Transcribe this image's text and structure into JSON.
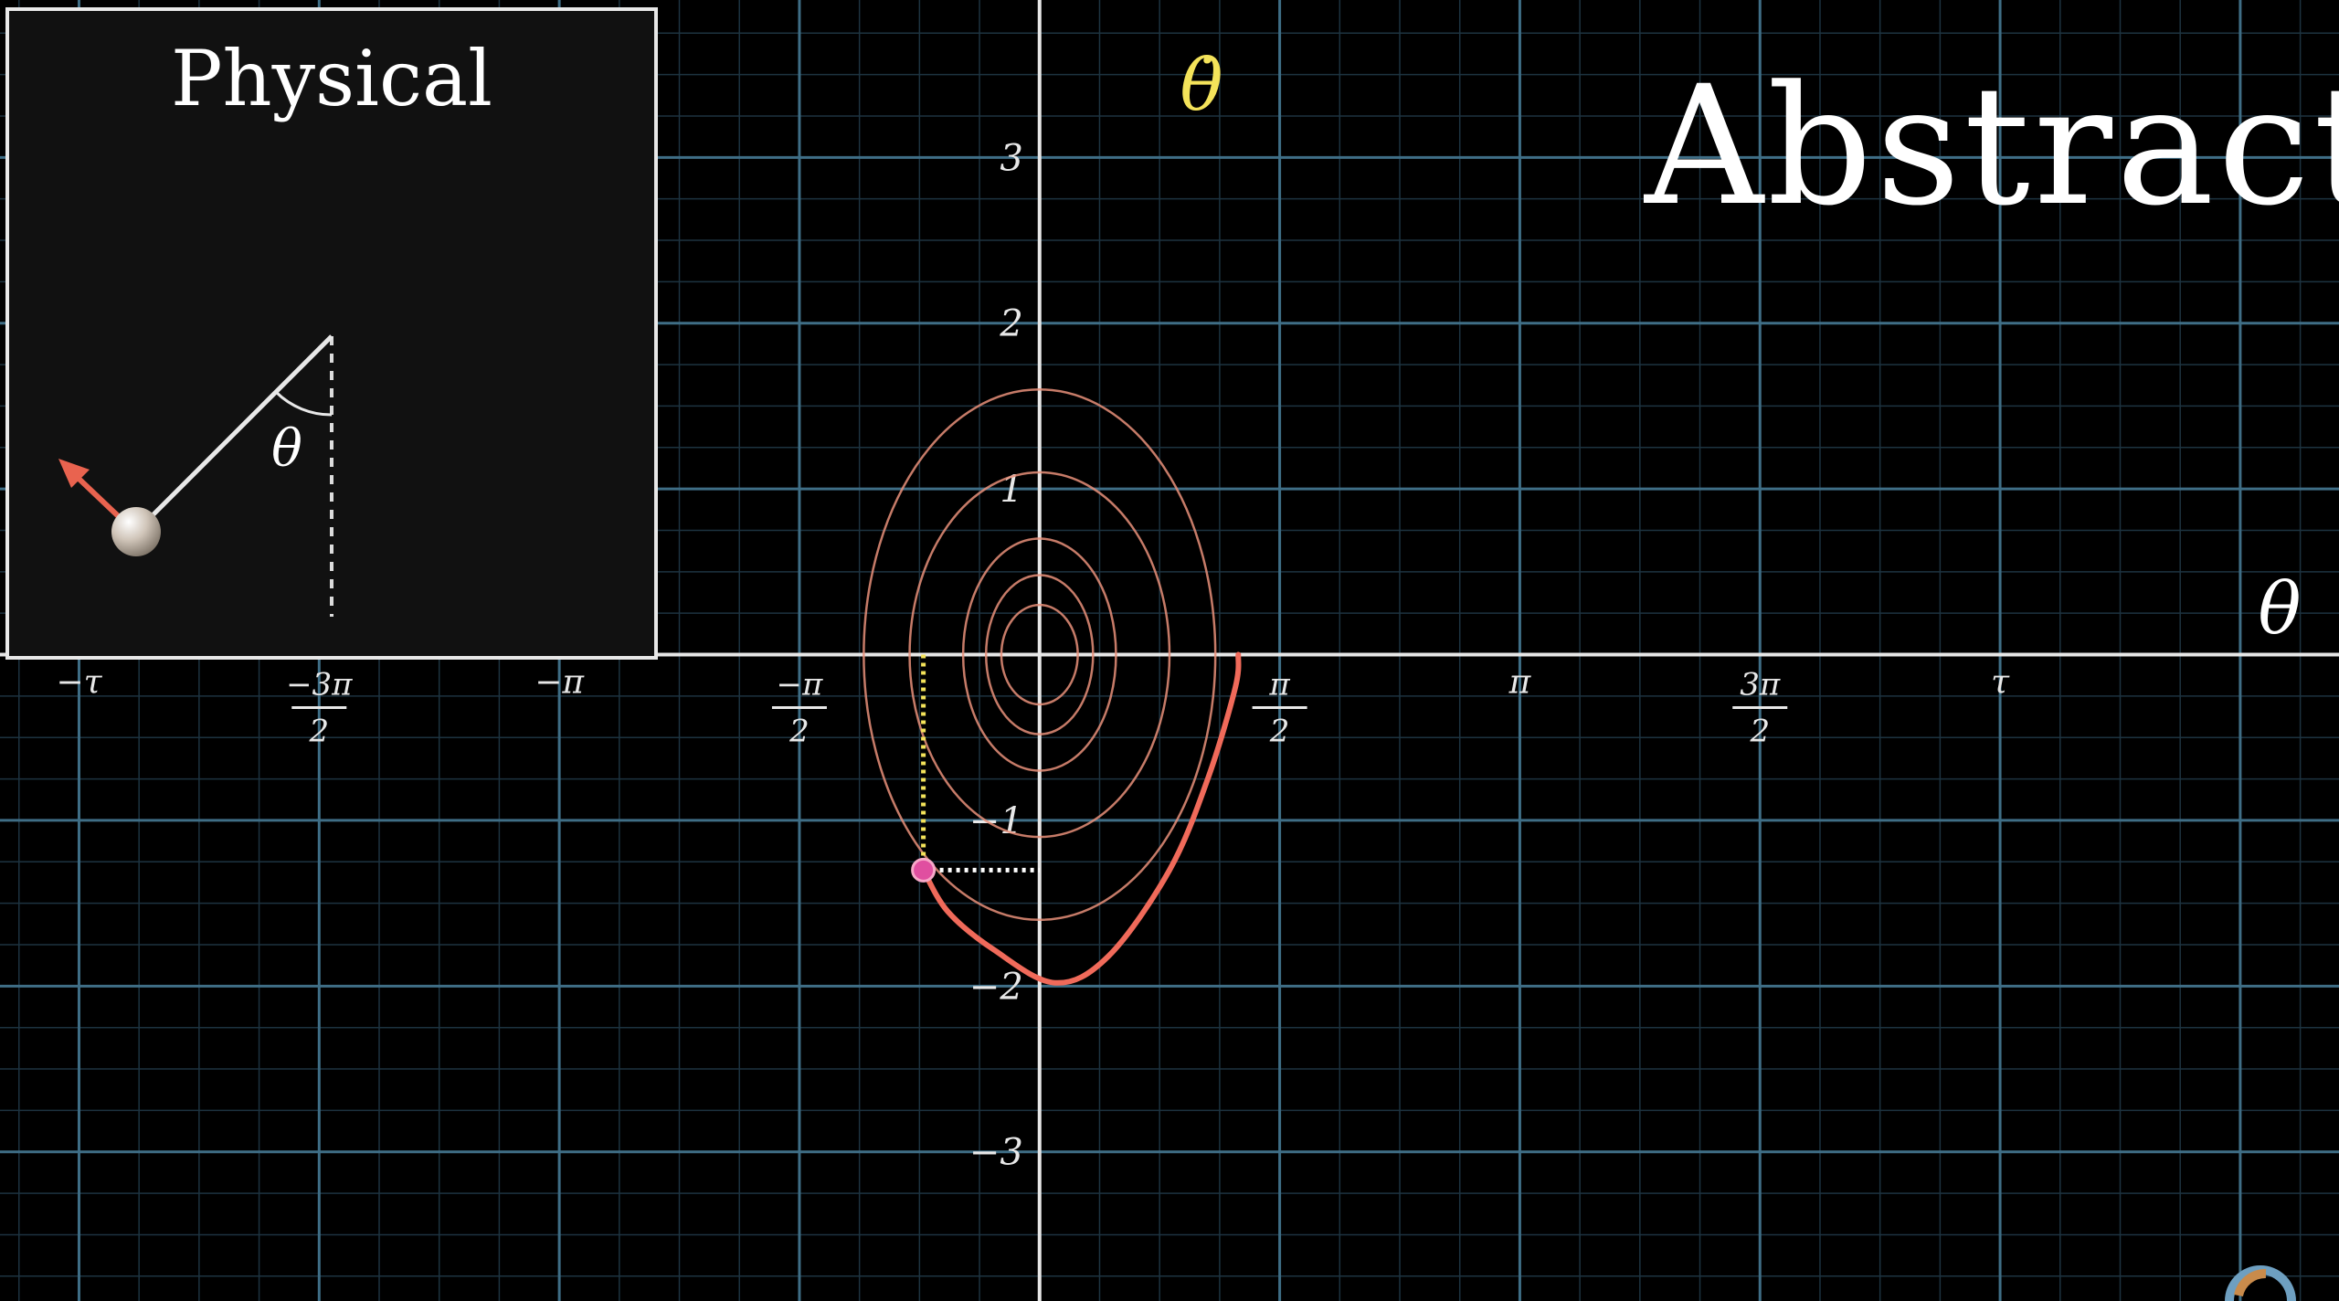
{
  "titles": {
    "abstract": "Abstract",
    "physical": "Physical"
  },
  "colors": {
    "background": "#000000",
    "grid_major": "#3f6e86",
    "grid_minor": "#1d3340",
    "axis": "#e6e6e6",
    "trajectory": "#f06a5a",
    "spiral": "#e9907a",
    "marker": "#e04fa0",
    "yaxis_label": "#f4e35a",
    "velocity_arrow": "#e9634f"
  },
  "chart_data": {
    "type": "line",
    "title": "Abstract",
    "xlabel": "θ",
    "ylabel": "θ̇",
    "xlim": [
      -6.8,
      8.5
    ],
    "ylim": [
      -3.9,
      3.95
    ],
    "grid": true,
    "x_ticks": [
      {
        "value": -6.2832,
        "num": "−τ",
        "den": ""
      },
      {
        "value": -4.7124,
        "num": "−3π",
        "den": "2"
      },
      {
        "value": -3.1416,
        "num": "−π",
        "den": ""
      },
      {
        "value": -1.5708,
        "num": "−π",
        "den": "2"
      },
      {
        "value": 1.5708,
        "num": "π",
        "den": "2"
      },
      {
        "value": 3.1416,
        "num": "π",
        "den": ""
      },
      {
        "value": 4.7124,
        "num": "3π",
        "den": "2"
      },
      {
        "value": 6.2832,
        "num": "τ",
        "den": ""
      }
    ],
    "y_ticks": [
      {
        "value": 3,
        "label": "3"
      },
      {
        "value": 2,
        "label": "2"
      },
      {
        "value": 1,
        "label": "1"
      },
      {
        "value": -1,
        "label": "−1"
      },
      {
        "value": -2,
        "label": "−2"
      },
      {
        "value": -3,
        "label": "−3"
      }
    ],
    "spiral_loops": [
      {
        "rx": 1.15,
        "ry": 1.6
      },
      {
        "rx": 0.85,
        "ry": 1.1
      },
      {
        "rx": 0.5,
        "ry": 0.7
      },
      {
        "rx": 0.35,
        "ry": 0.48
      },
      {
        "rx": 0.25,
        "ry": 0.3
      }
    ],
    "trajectory": [
      {
        "x": -0.76,
        "y": -1.3
      },
      {
        "x": -0.6,
        "y": -1.55
      },
      {
        "x": -0.3,
        "y": -1.78
      },
      {
        "x": 0.1,
        "y": -1.98
      },
      {
        "x": 0.45,
        "y": -1.82
      },
      {
        "x": 0.85,
        "y": -1.3
      },
      {
        "x": 1.1,
        "y": -0.75
      },
      {
        "x": 1.28,
        "y": -0.2
      },
      {
        "x": 1.3,
        "y": 0
      }
    ],
    "current_state": {
      "x": -0.76,
      "y": -1.3
    }
  },
  "pendulum": {
    "angle_label": "θ"
  }
}
